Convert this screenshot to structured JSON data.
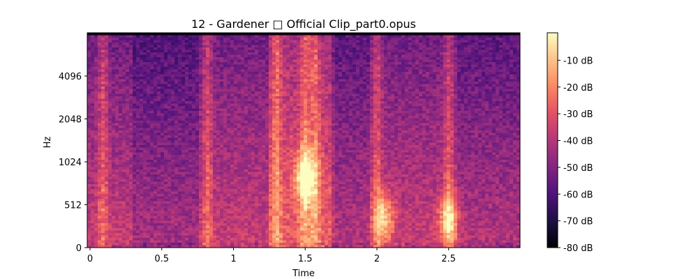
{
  "chart_data": {
    "type": "heatmap",
    "title": "12 - Gardener □ Official Clip_part0.opus",
    "xlabel": "Time",
    "ylabel": "Hz",
    "x_ticks": [
      "0",
      "0.5",
      "1",
      "1.5",
      "2",
      "2.5"
    ],
    "x_tick_values": [
      0,
      0.5,
      1,
      1.5,
      2,
      2.5
    ],
    "xlim": [
      0,
      3.0
    ],
    "y_scale": "log2-like",
    "y_ticks": [
      "0",
      "512",
      "1024",
      "2048",
      "4096"
    ],
    "y_tick_values": [
      0,
      512,
      1024,
      2048,
      4096
    ],
    "colorbar": {
      "ticks": [
        "-10 dB",
        "-20 dB",
        "-30 dB",
        "-40 dB",
        "-50 dB",
        "-60 dB",
        "-70 dB",
        "-80 dB"
      ],
      "tick_values": [
        -10,
        -20,
        -30,
        -40,
        -50,
        -60,
        -70,
        -80
      ],
      "range": [
        -80,
        0
      ],
      "colormap": "magma",
      "color_stops": [
        "#000004",
        "#1c1044",
        "#4f127b",
        "#812581",
        "#b5367a",
        "#e55064",
        "#fb8761",
        "#fec287",
        "#fcfdbf"
      ]
    },
    "features": {
      "vertical_bands_seconds": [
        0.09,
        0.82,
        1.3,
        1.5,
        1.57,
        2.0,
        2.5
      ],
      "hotspots": [
        {
          "t": 1.5,
          "hz": 800,
          "db": -5
        },
        {
          "t": 2.05,
          "hz": 350,
          "db": -15
        },
        {
          "t": 2.5,
          "hz": 350,
          "db": -15
        }
      ]
    }
  }
}
